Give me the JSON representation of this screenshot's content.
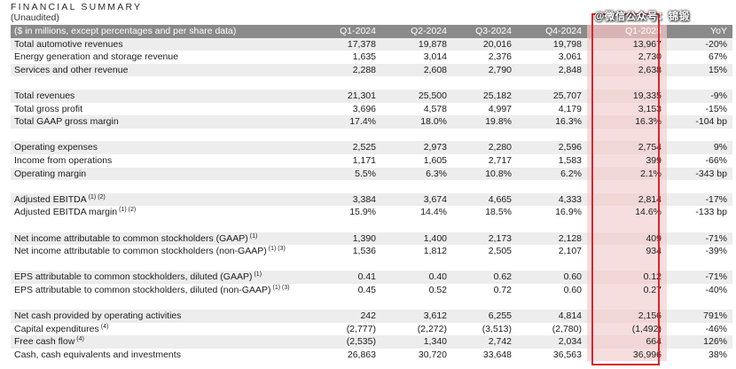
{
  "title": "FINANCIAL SUMMARY",
  "subtitle": "(Unaudited)",
  "watermark": "@微信公众号：锦锻",
  "header": {
    "label": "($ in millions, except percentages and per share data)",
    "cols": [
      "Q1-2024",
      "Q2-2024",
      "Q3-2024",
      "Q4-2024",
      "Q1-2025",
      "YoY"
    ]
  },
  "rows": [
    {
      "label": "Total automotive revenues",
      "sup": "",
      "values": [
        "17,378",
        "19,878",
        "20,016",
        "19,798",
        "13,967",
        "-20%"
      ]
    },
    {
      "label": "Energy generation and storage revenue",
      "sup": "",
      "values": [
        "1,635",
        "3,014",
        "2,376",
        "3,061",
        "2,730",
        "67%"
      ]
    },
    {
      "label": "Services and other revenue",
      "sup": "",
      "values": [
        "2,288",
        "2,608",
        "2,790",
        "2,848",
        "2,638",
        "15%"
      ]
    },
    {
      "label": "Total revenues",
      "sup": "",
      "values": [
        "21,301",
        "25,500",
        "25,182",
        "25,707",
        "19,335",
        "-9%"
      ]
    },
    {
      "label": "Total gross profit",
      "sup": "",
      "values": [
        "3,696",
        "4,578",
        "4,997",
        "4,179",
        "3,153",
        "-15%"
      ]
    },
    {
      "label": "Total GAAP gross margin",
      "sup": "",
      "values": [
        "17.4%",
        "18.0%",
        "19.8%",
        "16.3%",
        "16.3%",
        "-104 bp"
      ]
    },
    {
      "label": "Operating expenses",
      "sup": "",
      "values": [
        "2,525",
        "2,973",
        "2,280",
        "2,596",
        "2,754",
        "9%"
      ]
    },
    {
      "label": "Income from operations",
      "sup": "",
      "values": [
        "1,171",
        "1,605",
        "2,717",
        "1,583",
        "399",
        "-66%"
      ]
    },
    {
      "label": "Operating margin",
      "sup": "",
      "values": [
        "5.5%",
        "6.3%",
        "10.8%",
        "6.2%",
        "2.1%",
        "-343 bp"
      ]
    },
    {
      "label": "Adjusted EBITDA",
      "sup": "(1) (2)",
      "values": [
        "3,384",
        "3,674",
        "4,665",
        "4,333",
        "2,814",
        "-17%"
      ]
    },
    {
      "label": "Adjusted EBITDA margin",
      "sup": "(1) (2)",
      "values": [
        "15.9%",
        "14.4%",
        "18.5%",
        "16.9%",
        "14.6%",
        "-133 bp"
      ]
    },
    {
      "label": "Net income attributable to common stockholders (GAAP)",
      "sup": "(1)",
      "values": [
        "1,390",
        "1,400",
        "2,173",
        "2,128",
        "409",
        "-71%"
      ]
    },
    {
      "label": "Net income attributable to common stockholders (non-GAAP)",
      "sup": "(1) (3)",
      "values": [
        "1,536",
        "1,812",
        "2,505",
        "2,107",
        "934",
        "-39%"
      ]
    },
    {
      "label": "EPS attributable to common stockholders, diluted (GAAP)",
      "sup": "(1)",
      "values": [
        "0.41",
        "0.40",
        "0.62",
        "0.60",
        "0.12",
        "-71%"
      ]
    },
    {
      "label": "EPS attributable to common stockholders, diluted (non-GAAP)",
      "sup": "(1) (3)",
      "values": [
        "0.45",
        "0.52",
        "0.72",
        "0.60",
        "0.27",
        "-40%"
      ]
    },
    {
      "label": "Net cash provided by operating activities",
      "sup": "",
      "values": [
        "242",
        "3,612",
        "6,255",
        "4,814",
        "2,156",
        "791%"
      ]
    },
    {
      "label": "Capital expenditures",
      "sup": "(4)",
      "values": [
        "(2,777)",
        "(2,272)",
        "(3,513)",
        "(2,780)",
        "(1,492)",
        "-46%"
      ]
    },
    {
      "label": "Free cash flow",
      "sup": "(4)",
      "values": [
        "(2,535)",
        "1,340",
        "2,742",
        "2,034",
        "664",
        "126%"
      ]
    },
    {
      "label": "Cash, cash equivalents and investments",
      "sup": "",
      "values": [
        "26,863",
        "30,720",
        "33,648",
        "36,563",
        "36,996",
        "38%"
      ]
    }
  ],
  "groups": [
    [
      0,
      1,
      2
    ],
    [
      3,
      4,
      5
    ],
    [
      6,
      7,
      8
    ],
    [
      9,
      10
    ],
    [
      11,
      12
    ],
    [
      13,
      14
    ],
    [
      15,
      16,
      17,
      18
    ]
  ],
  "highlight_column": "Q1-2025"
}
